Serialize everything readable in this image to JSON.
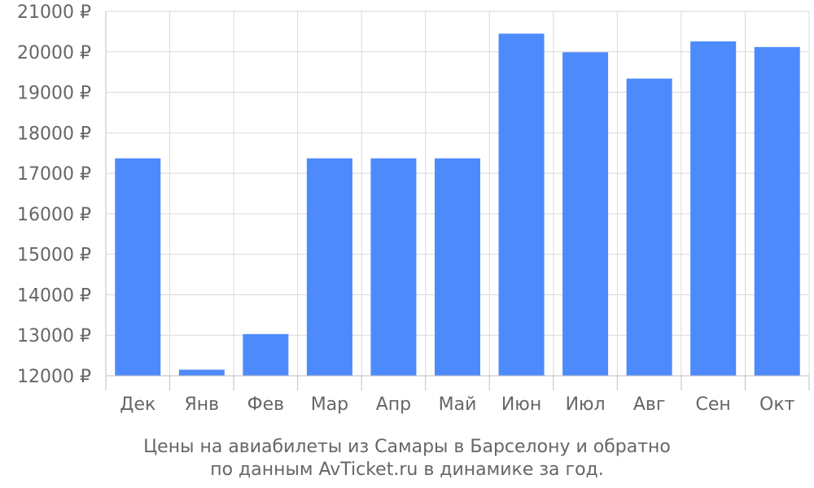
{
  "chart_data": {
    "type": "bar",
    "categories": [
      "Дек",
      "Янв",
      "Фев",
      "Мар",
      "Апр",
      "Май",
      "Июн",
      "Июл",
      "Авг",
      "Сен",
      "Окт"
    ],
    "values": [
      17370,
      12150,
      13030,
      17370,
      17370,
      17370,
      20450,
      19990,
      19340,
      20260,
      20120
    ],
    "ylim": [
      12000,
      21000
    ],
    "yticks": [
      12000,
      13000,
      14000,
      15000,
      16000,
      17000,
      18000,
      19000,
      20000,
      21000
    ],
    "ytick_suffix": " ₽",
    "bar_color": "#4d8afc",
    "grid": true,
    "caption": [
      "Цены на авиабилеты из Самары в Барселону и обратно",
      "по данным AvTicket.ru в динамике за год."
    ]
  }
}
